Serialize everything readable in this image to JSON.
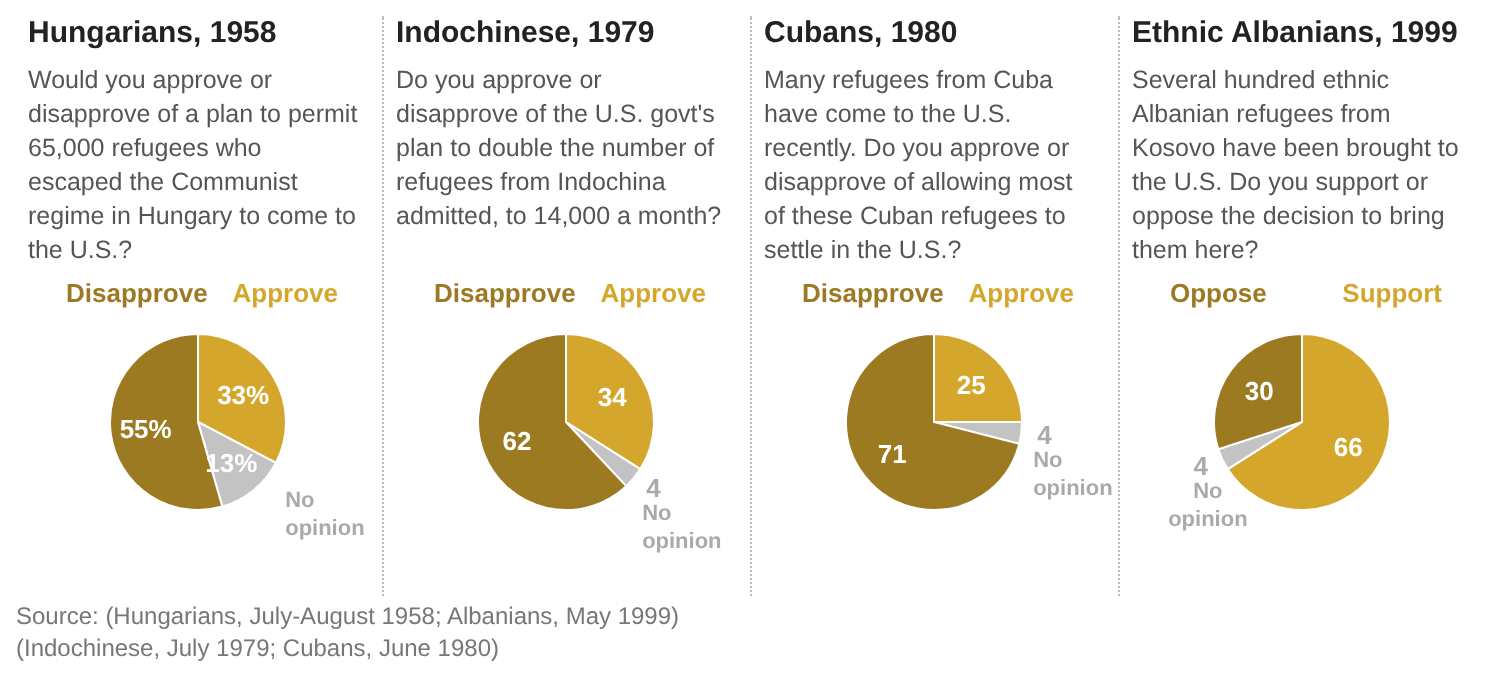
{
  "chart_data": [
    {
      "type": "pie",
      "title": "Hungarians, 1958",
      "subtitle": "Would you approve or disapprove of a plan to permit 65,000 refugees who escaped the Communist regime in Hungary to come to the U.S.?",
      "categories": [
        "Approve",
        "No opinion",
        "Disapprove"
      ],
      "values": [
        33,
        13,
        55
      ],
      "colors": [
        "#d4a72c",
        "#c3c3c3",
        "#9c7a22"
      ],
      "value_labels": [
        "33%",
        "13%",
        "55%"
      ],
      "annotations": [
        "Source: (Hungarians, July-August 1958; Albanians, May 1999)",
        "(Indochinese, July 1979; Cubans, June 1980)"
      ]
    },
    {
      "type": "pie",
      "title": "Indochinese, 1979",
      "subtitle": "Do you approve or disapprove of the U.S. govt's plan to double the number of refugees from Indochina admitted, to 14,000 a month?",
      "categories": [
        "Approve",
        "No opinion",
        "Disapprove"
      ],
      "values": [
        34,
        4,
        62
      ],
      "colors": [
        "#d4a72c",
        "#c3c3c3",
        "#9c7a22"
      ],
      "data_labels": true
    },
    {
      "type": "pie",
      "title": "Cubans, 1980",
      "subtitle": "Many refugees from Cuba have come to the U.S. recently. Do you approve or disapprove of allowing most of these Cuban refugees to settle in the U.S.?",
      "categories": [
        "Approve",
        "No opinion",
        "Disapprove"
      ],
      "values": [
        25,
        4,
        71
      ],
      "colors": [
        "#d4a72c",
        "#c3c3c3",
        "#9c7a22"
      ],
      "data_labels": true
    },
    {
      "type": "pie",
      "title": "Ethnic Albanians, 1999",
      "subtitle": "Several hundred ethnic Albanian refugees from Kosovo have been brought to the U.S. Do you support or oppose the decision to bring them here?",
      "categories": [
        "Support",
        "No opinion",
        "Oppose"
      ],
      "values": [
        66,
        4,
        30
      ],
      "colors": [
        "#d4a72c",
        "#c3c3c3",
        "#9c7a22"
      ],
      "data_labels": true
    }
  ]
}
